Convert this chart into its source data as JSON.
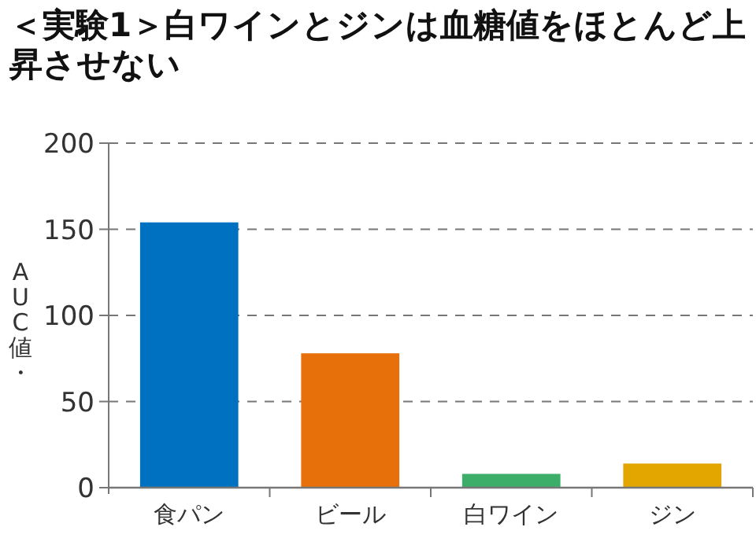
{
  "chart_data": {
    "type": "bar",
    "title": "＜実験1＞白ワインとジンは血糖値をほとんど上昇させない",
    "ylabel": "AUC値・",
    "categories": [
      "食パン",
      "ビール",
      "白ワイン",
      "ジン"
    ],
    "values": [
      154,
      78,
      8,
      14
    ],
    "colors": [
      "#0070c0",
      "#e8700a",
      "#3cae6a",
      "#e3a500"
    ],
    "ylim": [
      0,
      200
    ],
    "yticks": [
      0,
      50,
      100,
      150,
      200
    ],
    "grid": "y"
  }
}
